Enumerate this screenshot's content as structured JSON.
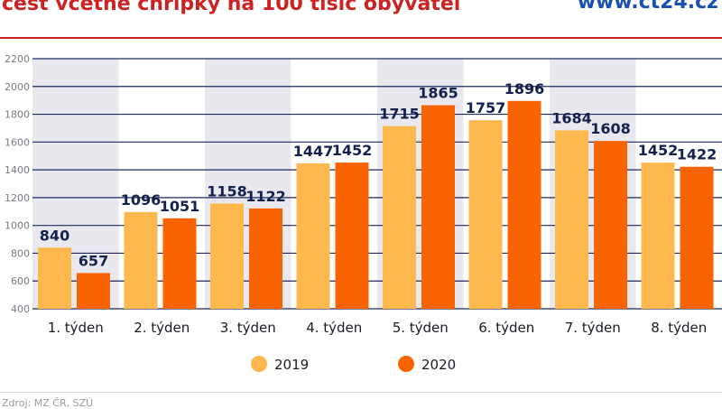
{
  "header": {
    "title": "cest včetně chřipky na 100 tisíc obyvatel",
    "brand": "www.ct24.cz"
  },
  "footer": {
    "source": "Zdroj: MZ ČR, SZÚ"
  },
  "colors": {
    "series_2019": "#fdb94d",
    "series_2020": "#fa6400",
    "grid": "#1c2a5e",
    "band": "#e8e8ee",
    "title": "#cc2222",
    "brand": "#1a4fb5",
    "value_label": "#14214d"
  },
  "chart_data": {
    "type": "bar",
    "title": "",
    "xlabel": "",
    "ylabel": "",
    "categories": [
      "1. týden",
      "2. týden",
      "3. týden",
      "4. týden",
      "5. týden",
      "6. týden",
      "7. týden",
      "8. týden"
    ],
    "series": [
      {
        "name": "2019",
        "values": [
          840,
          1096,
          1158,
          1447,
          1715,
          1757,
          1684,
          1452
        ]
      },
      {
        "name": "2020",
        "values": [
          657,
          1051,
          1122,
          1452,
          1865,
          1896,
          1608,
          1422
        ]
      }
    ],
    "ylim": [
      400,
      2200
    ],
    "yticks": [
      400,
      600,
      800,
      1000,
      1200,
      1400,
      1600,
      1800,
      2000,
      2200
    ],
    "grid": true,
    "legend_position": "bottom-center"
  }
}
